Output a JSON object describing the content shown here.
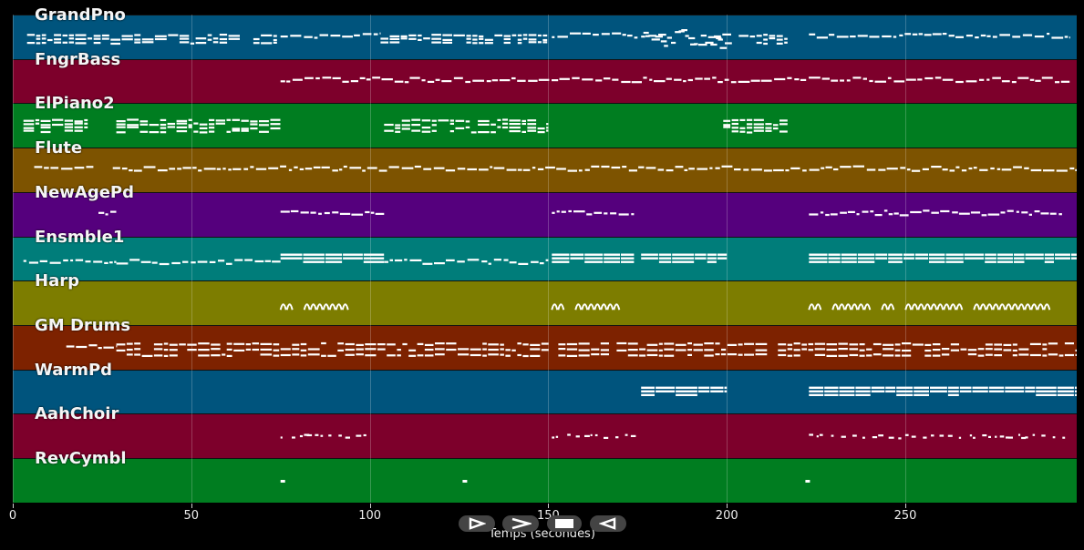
{
  "tracks": [
    {
      "name": "GrandPno",
      "color": "#00547d"
    },
    {
      "name": "FngrBass",
      "color": "#7d002b"
    },
    {
      "name": "ElPiano2",
      "color": "#007d20"
    },
    {
      "name": "Flute",
      "color": "#7d5300"
    },
    {
      "name": "NewAgePd",
      "color": "#55007d"
    },
    {
      "name": "Ensmble1",
      "color": "#007d7a"
    },
    {
      "name": "Harp",
      "color": "#7d7d00"
    },
    {
      "name": "GM Drums",
      "color": "#7d2200"
    },
    {
      "name": "WarmPd",
      "color": "#00547d"
    },
    {
      "name": "AahChoir",
      "color": "#7d002b"
    },
    {
      "name": "RevCymbl",
      "color": "#007d20"
    }
  ],
  "axis": {
    "xlabel": "Temps (secondes)",
    "xlim": [
      0,
      298
    ],
    "ticks": [
      {
        "value": 0,
        "label": "0"
      },
      {
        "value": 50,
        "label": "50"
      },
      {
        "value": 100,
        "label": "100"
      },
      {
        "value": 150,
        "label": "150"
      },
      {
        "value": 200,
        "label": "200"
      },
      {
        "value": 250,
        "label": "250"
      }
    ]
  },
  "note_regions": [
    {
      "track": 0,
      "segments": [
        [
          4,
          74,
          "dense"
        ],
        [
          75,
          103,
          "line"
        ],
        [
          103,
          150,
          "dense"
        ],
        [
          151,
          175,
          "line"
        ],
        [
          176,
          200,
          "scatter"
        ],
        [
          200,
          217,
          "dense"
        ],
        [
          223,
          296,
          "line"
        ]
      ]
    },
    {
      "track": 1,
      "segments": [
        [
          75,
          296,
          "line"
        ]
      ]
    },
    {
      "track": 2,
      "segments": [
        [
          3,
          21,
          "dense"
        ],
        [
          29,
          75,
          "dense"
        ],
        [
          104,
          150,
          "dense"
        ],
        [
          199,
          217,
          "dense"
        ]
      ]
    },
    {
      "track": 3,
      "segments": [
        [
          6,
          23,
          "line"
        ],
        [
          28,
          298,
          "line"
        ]
      ]
    },
    {
      "track": 4,
      "segments": [
        [
          24,
          29,
          "line"
        ],
        [
          75,
          104,
          "line"
        ],
        [
          151,
          174,
          "line"
        ],
        [
          223,
          294,
          "line"
        ]
      ]
    },
    {
      "track": 5,
      "segments": [
        [
          3,
          29,
          "line"
        ],
        [
          29,
          75,
          "line"
        ],
        [
          75,
          104,
          "band"
        ],
        [
          104,
          150,
          "line"
        ],
        [
          151,
          174,
          "band"
        ],
        [
          176,
          200,
          "band"
        ],
        [
          223,
          298,
          "band"
        ]
      ]
    },
    {
      "track": 6,
      "segments": [
        [
          75,
          98,
          "arc"
        ],
        [
          151,
          174,
          "arc"
        ],
        [
          223,
          290,
          "arc"
        ]
      ]
    },
    {
      "track": 7,
      "segments": [
        [
          15,
          29,
          "line"
        ],
        [
          29,
          298,
          "dense"
        ]
      ]
    },
    {
      "track": 8,
      "segments": [
        [
          176,
          200,
          "band"
        ],
        [
          223,
          298,
          "band"
        ]
      ]
    },
    {
      "track": 9,
      "segments": [
        [
          75,
          100,
          "sparse"
        ],
        [
          151,
          174,
          "sparse"
        ],
        [
          223,
          294,
          "sparse"
        ]
      ]
    },
    {
      "track": 10,
      "segments": [
        [
          75,
          76,
          "dot"
        ],
        [
          126,
          127,
          "dot"
        ],
        [
          222,
          223,
          "dot"
        ]
      ]
    }
  ],
  "controls": [
    {
      "name": "play-icon"
    },
    {
      "name": "forward-icon"
    },
    {
      "name": "stop-icon"
    },
    {
      "name": "rewind-icon"
    }
  ]
}
